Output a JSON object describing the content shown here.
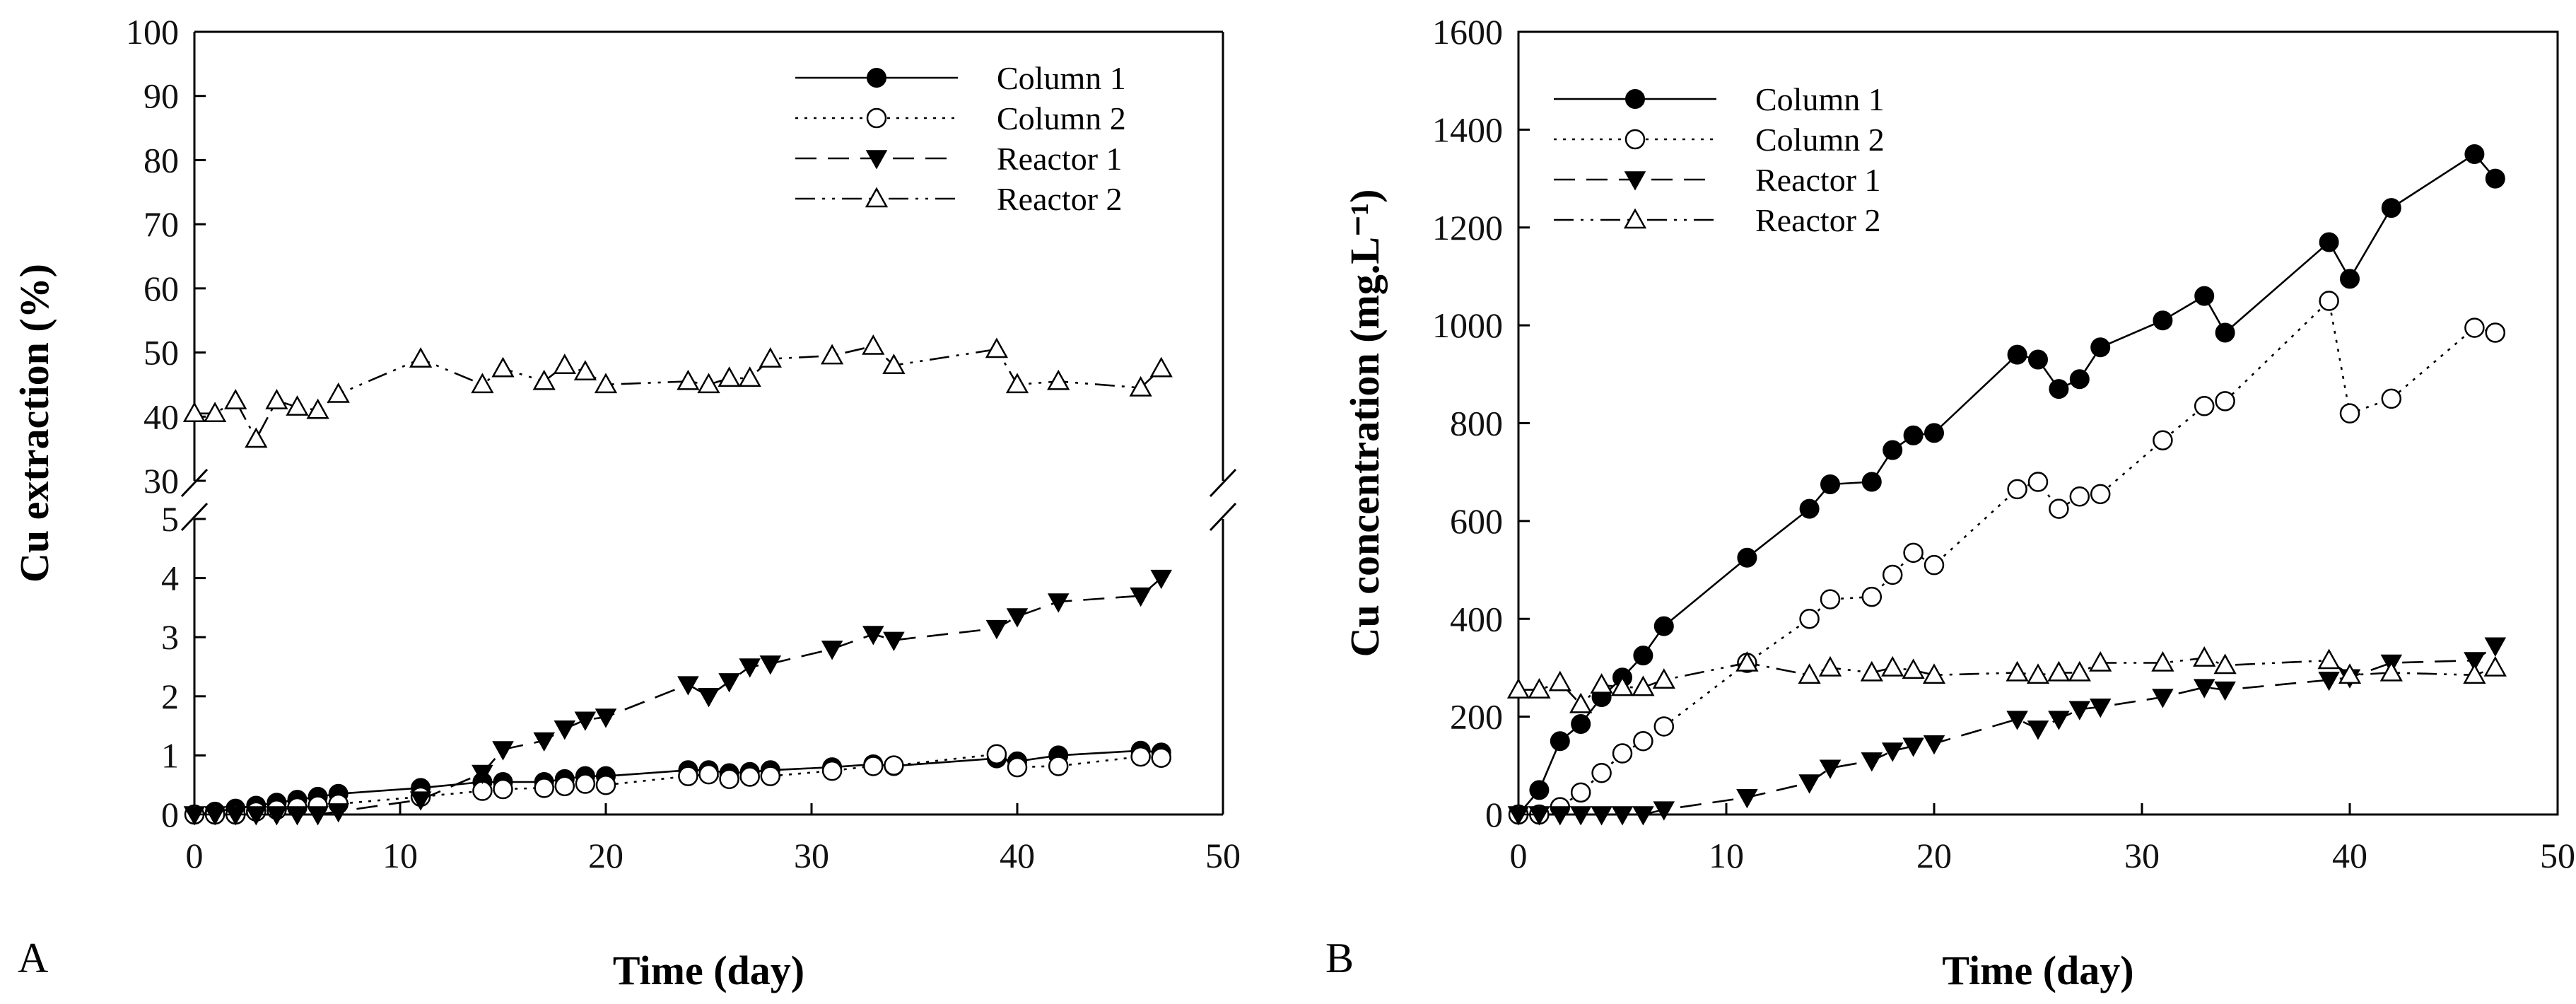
{
  "chart_data": [
    {
      "type": "line",
      "panel_label": "A",
      "xlabel": "Time (day)",
      "ylabel": "Cu extraction (%)",
      "xlim": [
        0,
        50
      ],
      "x_ticks": [
        "0",
        "10",
        "20",
        "30",
        "40",
        "50"
      ],
      "y_axis_break": true,
      "ylim_lower": [
        0,
        5
      ],
      "ylim_upper": [
        30,
        100
      ],
      "y_ticks_lower": [
        "0",
        "1",
        "2",
        "3",
        "4",
        "5"
      ],
      "y_ticks_upper": [
        "30",
        "40",
        "50",
        "60",
        "70",
        "80",
        "90",
        "100"
      ],
      "legend_position": "top-right",
      "grid": false,
      "series": [
        {
          "name": "Column 1",
          "marker": "filled-circle",
          "line": "solid",
          "x": [
            0,
            1,
            2,
            3,
            4,
            5,
            6,
            7,
            11,
            14,
            15,
            17,
            18,
            19,
            20,
            24,
            25,
            26,
            27,
            28,
            31,
            33,
            34,
            39,
            40,
            42,
            46,
            47
          ],
          "y": [
            0,
            0.05,
            0.1,
            0.15,
            0.2,
            0.25,
            0.3,
            0.35,
            0.45,
            0.55,
            0.55,
            0.55,
            0.6,
            0.65,
            0.65,
            0.75,
            0.75,
            0.7,
            0.72,
            0.75,
            0.8,
            0.85,
            0.82,
            0.95,
            0.9,
            1.0,
            1.08,
            1.05
          ]
        },
        {
          "name": "Column 2",
          "marker": "open-circle",
          "line": "dotted",
          "x": [
            0,
            1,
            2,
            3,
            4,
            5,
            6,
            7,
            11,
            14,
            15,
            17,
            18,
            19,
            20,
            24,
            25,
            26,
            27,
            28,
            31,
            33,
            34,
            39,
            40,
            42,
            46,
            47
          ],
          "y": [
            0,
            0,
            0,
            0.05,
            0.08,
            0.12,
            0.15,
            0.18,
            0.3,
            0.4,
            0.43,
            0.45,
            0.48,
            0.52,
            0.5,
            0.65,
            0.68,
            0.6,
            0.64,
            0.65,
            0.74,
            0.82,
            0.83,
            1.02,
            0.8,
            0.82,
            0.98,
            0.96
          ]
        },
        {
          "name": "Reactor 1",
          "marker": "filled-triangle-down",
          "line": "dashed",
          "x": [
            0,
            1,
            2,
            3,
            4,
            5,
            6,
            7,
            11,
            14,
            15,
            17,
            18,
            19,
            20,
            24,
            25,
            26,
            27,
            28,
            31,
            33,
            34,
            39,
            40,
            42,
            46,
            47
          ],
          "y": [
            0,
            0,
            0,
            0,
            0,
            0,
            0,
            0.05,
            0.25,
            0.7,
            1.1,
            1.25,
            1.45,
            1.6,
            1.65,
            2.2,
            2.0,
            2.25,
            2.5,
            2.55,
            2.8,
            3.05,
            2.95,
            3.15,
            3.35,
            3.6,
            3.7,
            4.0
          ]
        },
        {
          "name": "Reactor 2",
          "marker": "open-triangle-up",
          "line": "dash-dot-dot",
          "x": [
            0,
            1,
            2,
            3,
            4,
            5,
            6,
            7,
            11,
            14,
            15,
            17,
            18,
            19,
            20,
            24,
            25,
            26,
            27,
            28,
            31,
            33,
            34,
            39,
            40,
            42,
            46,
            47
          ],
          "y": [
            40.5,
            40.5,
            42.5,
            36.5,
            42.5,
            41.5,
            41,
            43.5,
            49,
            45,
            47.5,
            45.5,
            48,
            47,
            45,
            45.5,
            45,
            46,
            46,
            49,
            49.5,
            51,
            48,
            50.5,
            45,
            45.5,
            44.5,
            47.5
          ]
        }
      ]
    },
    {
      "type": "line",
      "panel_label": "B",
      "xlabel": "Time (day)",
      "ylabel": "Cu concentration (mg.L⁻¹)",
      "xlim": [
        0,
        50
      ],
      "ylim": [
        0,
        1600
      ],
      "x_ticks": [
        "0",
        "10",
        "20",
        "30",
        "40",
        "50"
      ],
      "y_ticks": [
        "0",
        "200",
        "400",
        "600",
        "800",
        "1000",
        "1200",
        "1400",
        "1600"
      ],
      "legend_position": "top-left",
      "grid": false,
      "series": [
        {
          "name": "Column 1",
          "marker": "filled-circle",
          "line": "solid",
          "x": [
            0,
            1,
            2,
            3,
            4,
            5,
            6,
            7,
            11,
            14,
            15,
            17,
            18,
            19,
            20,
            24,
            25,
            26,
            27,
            28,
            31,
            33,
            34,
            39,
            40,
            42,
            46,
            47
          ],
          "y": [
            0,
            50,
            150,
            185,
            240,
            280,
            325,
            385,
            525,
            625,
            675,
            680,
            745,
            775,
            780,
            940,
            930,
            870,
            890,
            955,
            1010,
            1060,
            985,
            1170,
            1095,
            1240,
            1350,
            1300
          ]
        },
        {
          "name": "Column 2",
          "marker": "open-circle",
          "line": "dotted",
          "x": [
            0,
            1,
            2,
            3,
            4,
            5,
            6,
            7,
            11,
            14,
            15,
            17,
            18,
            19,
            20,
            24,
            25,
            26,
            27,
            28,
            31,
            33,
            34,
            39,
            40,
            42,
            46,
            47
          ],
          "y": [
            0,
            0,
            15,
            45,
            85,
            125,
            150,
            180,
            310,
            400,
            440,
            445,
            490,
            535,
            510,
            665,
            680,
            625,
            650,
            655,
            765,
            835,
            845,
            1050,
            820,
            850,
            995,
            985
          ]
        },
        {
          "name": "Reactor 1",
          "marker": "filled-triangle-down",
          "line": "dashed",
          "x": [
            0,
            1,
            2,
            3,
            4,
            5,
            6,
            7,
            11,
            14,
            15,
            17,
            18,
            19,
            20,
            24,
            25,
            26,
            27,
            28,
            31,
            33,
            34,
            39,
            40,
            42,
            46,
            47
          ],
          "y": [
            0,
            0,
            0,
            0,
            0,
            0,
            0,
            10,
            35,
            65,
            95,
            110,
            130,
            140,
            145,
            195,
            175,
            195,
            215,
            220,
            240,
            260,
            255,
            275,
            280,
            310,
            315,
            345
          ]
        },
        {
          "name": "Reactor 2",
          "marker": "open-triangle-up",
          "line": "dash-dot-dot",
          "x": [
            0,
            1,
            2,
            3,
            4,
            5,
            6,
            7,
            11,
            14,
            15,
            17,
            18,
            19,
            20,
            24,
            25,
            26,
            27,
            28,
            31,
            33,
            34,
            39,
            40,
            42,
            46,
            47
          ],
          "y": [
            255,
            255,
            270,
            225,
            265,
            260,
            260,
            275,
            310,
            285,
            300,
            290,
            300,
            295,
            285,
            290,
            285,
            290,
            290,
            310,
            310,
            320,
            305,
            315,
            285,
            290,
            285,
            300
          ]
        }
      ]
    }
  ]
}
